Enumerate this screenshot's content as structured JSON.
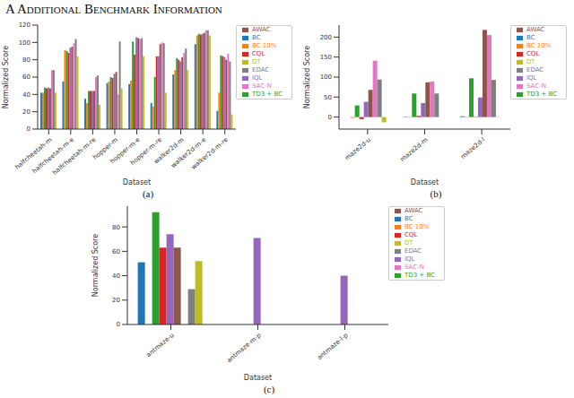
{
  "title": "A Additional Benchmark Information",
  "chart_data": [
    {
      "type": "bar",
      "caption": "(a)",
      "x_label": "Dataset",
      "y_label": "Normalized Score",
      "categories": [
        "halfcheetah-m",
        "halfcheetah-m-e",
        "halfcheetah-m-re",
        "hopper-m",
        "hopper-m-e",
        "hopper-m-re",
        "walker2d-m",
        "walker2d-m-e",
        "walker2d-m-re"
      ],
      "series": [
        {
          "name": "BC",
          "color": "#1f77b4",
          "values": [
            42,
            55,
            35,
            53,
            52,
            30,
            63,
            98,
            21
          ]
        },
        {
          "name": "BC 10%",
          "color": "#ff7f0e",
          "values": [
            42,
            91,
            30,
            55,
            56,
            26,
            68,
            108,
            42
          ]
        },
        {
          "name": "TD3 + BC",
          "color": "#2ca02c",
          "values": [
            48,
            90,
            44,
            60,
            101,
            60,
            82,
            110,
            85
          ]
        },
        {
          "name": "CQL",
          "color": "#d62728",
          "values": [
            47,
            88,
            44,
            59,
            86,
            84,
            80,
            109,
            84
          ]
        },
        {
          "name": "IQL",
          "color": "#9467bd",
          "values": [
            48,
            94,
            44,
            64,
            106,
            84,
            78,
            110,
            83
          ]
        },
        {
          "name": "AWAC",
          "color": "#8c564b",
          "values": [
            47,
            95,
            44,
            66,
            105,
            98,
            83,
            111,
            80
          ]
        },
        {
          "name": "SAC-N",
          "color": "#e377c2",
          "values": [
            68,
            99,
            60,
            40,
            104,
            100,
            88,
            114,
            87
          ]
        },
        {
          "name": "EDAC",
          "color": "#7f7f7f",
          "values": [
            68,
            104,
            62,
            101,
            105,
            99,
            93,
            114,
            78
          ]
        },
        {
          "name": "DT",
          "color": "#bcbd22",
          "values": [
            42,
            84,
            28,
            47,
            84,
            42,
            68,
            108,
            17
          ]
        }
      ],
      "ylim": [
        0,
        120
      ],
      "yticks": [
        0,
        20,
        40,
        60,
        80,
        100,
        120
      ],
      "grid": false,
      "legend": "upper right"
    },
    {
      "type": "bar",
      "caption": "(b)",
      "x_label": "Dataset",
      "y_label": "Normalized Score",
      "categories": [
        "maze2d-u",
        "maze2d-m",
        "maze2d-l"
      ],
      "series": [
        {
          "name": "BC",
          "color": "#1f77b4",
          "values": [
            0,
            1,
            2
          ]
        },
        {
          "name": "BC 10%",
          "color": "#ff7f0e",
          "values": [
            -2,
            1,
            1
          ]
        },
        {
          "name": "TD3 + BC",
          "color": "#2ca02c",
          "values": [
            29,
            59,
            97
          ]
        },
        {
          "name": "CQL",
          "color": "#d62728",
          "values": [
            -5,
            3,
            -1
          ]
        },
        {
          "name": "IQL",
          "color": "#9467bd",
          "values": [
            38,
            35,
            49
          ]
        },
        {
          "name": "AWAC",
          "color": "#8c564b",
          "values": [
            68,
            87,
            218
          ]
        },
        {
          "name": "SAC-N",
          "color": "#e377c2",
          "values": [
            141,
            89,
            205
          ]
        },
        {
          "name": "EDAC",
          "color": "#7f7f7f",
          "values": [
            94,
            59,
            93
          ]
        },
        {
          "name": "DT",
          "color": "#bcbd22",
          "values": [
            -13,
            0,
            1
          ]
        }
      ],
      "ylim": [
        -30,
        230
      ],
      "yticks": [
        0,
        50,
        100,
        150,
        200
      ],
      "grid": false,
      "legend": "upper right"
    },
    {
      "type": "bar",
      "caption": "(c)",
      "x_label": "Dataset",
      "y_label": "Normalized Score",
      "categories": [
        "antmaze-u",
        "antmaze-m-p",
        "antmaze-l-p"
      ],
      "series": [
        {
          "name": "BC",
          "color": "#1f77b4",
          "values": [
            51,
            0,
            0
          ]
        },
        {
          "name": "BC 10%",
          "color": "#ff7f0e",
          "values": [
            0,
            0,
            0
          ]
        },
        {
          "name": "TD3 + BC",
          "color": "#2ca02c",
          "values": [
            92,
            0,
            0
          ]
        },
        {
          "name": "CQL",
          "color": "#d62728",
          "values": [
            63,
            0,
            0
          ]
        },
        {
          "name": "IQL",
          "color": "#9467bd",
          "values": [
            74,
            71,
            40
          ]
        },
        {
          "name": "AWAC",
          "color": "#8c564b",
          "values": [
            63,
            0,
            0
          ]
        },
        {
          "name": "SAC-N",
          "color": "#e377c2",
          "values": [
            0,
            0,
            0
          ]
        },
        {
          "name": "EDAC",
          "color": "#7f7f7f",
          "values": [
            29,
            0,
            0
          ]
        },
        {
          "name": "DT",
          "color": "#bcbd22",
          "values": [
            52,
            0,
            0
          ]
        }
      ],
      "ylim": [
        0,
        97
      ],
      "yticks": [
        0,
        20,
        40,
        60,
        80
      ],
      "grid": false,
      "legend": "upper right"
    }
  ]
}
